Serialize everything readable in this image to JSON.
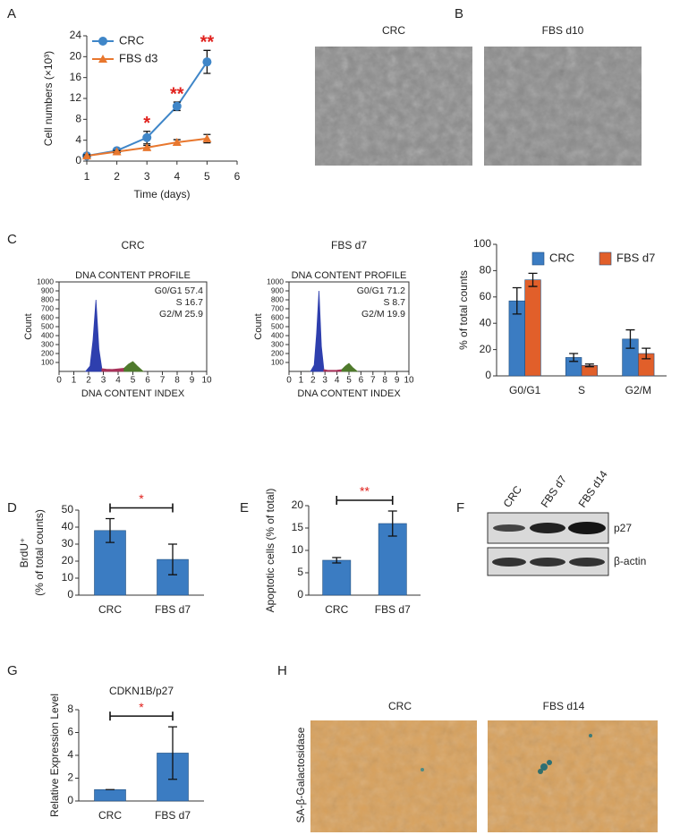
{
  "panels": [
    "A",
    "B",
    "C",
    "D",
    "E",
    "F",
    "G",
    "H"
  ],
  "chart_data": [
    {
      "type": "line",
      "xlabel": "Time (days)",
      "ylabel": "Cell numbers (×10³)",
      "x": [
        1,
        2,
        3,
        4,
        5
      ],
      "xlim": [
        1,
        6
      ],
      "xticks": [
        1,
        2,
        3,
        4,
        5,
        6
      ],
      "ylim": [
        0,
        24
      ],
      "yticks": [
        0,
        4,
        8,
        12,
        16,
        20,
        24
      ],
      "legend": "top-left",
      "series": [
        {
          "name": "CRC",
          "color": "#3f86c8",
          "marker": "circle",
          "values": [
            1,
            2,
            4.5,
            10.5,
            19
          ],
          "errors": [
            0.3,
            0.3,
            1.2,
            0.8,
            2.2
          ]
        },
        {
          "name": "FBS d3",
          "color": "#e8772e",
          "marker": "triangle",
          "values": [
            1,
            1.8,
            2.6,
            3.6,
            4.3
          ],
          "errors": [
            0.2,
            0.2,
            0.4,
            0.5,
            0.8
          ]
        }
      ],
      "annotations": [
        {
          "x": 3,
          "label": "*"
        },
        {
          "x": 4,
          "label": "**"
        },
        {
          "x": 5,
          "label": "**"
        }
      ],
      "annotation_color": "#e0201c"
    },
    {
      "type": "area",
      "heading": "CRC",
      "title": "DNA CONTENT PROFILE",
      "xlabel": "DNA CONTENT INDEX",
      "ylabel": "Count",
      "x": [
        1.8,
        2.1,
        2.3,
        2.5,
        2.7,
        2.9,
        3.2,
        3.6,
        4.0,
        4.4,
        4.7,
        5.0,
        5.3,
        5.7
      ],
      "xlim": [
        0,
        10
      ],
      "xticks": [
        0,
        1,
        2,
        3,
        4,
        5,
        6,
        7,
        8,
        9,
        10
      ],
      "ylim": [
        0,
        1000
      ],
      "yticks": [
        100,
        200,
        300,
        400,
        500,
        600,
        700,
        800,
        900,
        1000
      ],
      "series": [
        {
          "color": "#2e3fae",
          "values": [
            0,
            60,
            350,
            800,
            250,
            30,
            null,
            null,
            null,
            null,
            null,
            null,
            null,
            null
          ]
        },
        {
          "color": "#a8325a",
          "values": [
            null,
            null,
            null,
            null,
            null,
            30,
            25,
            22,
            28,
            35,
            null,
            null,
            null,
            null
          ]
        },
        {
          "color": "#4f7a2c",
          "values": [
            null,
            null,
            null,
            null,
            null,
            null,
            null,
            null,
            null,
            35,
            80,
            110,
            60,
            0
          ]
        }
      ],
      "annotations": [
        "G0/G1 57.4",
        "S 16.7",
        "G2/M 25.9"
      ]
    },
    {
      "type": "area",
      "heading": "FBS d7",
      "title": "DNA CONTENT PROFILE",
      "xlabel": "DNA CONTENT INDEX",
      "ylabel": "Count",
      "x": [
        1.8,
        2.1,
        2.3,
        2.5,
        2.7,
        2.9,
        3.2,
        3.6,
        4.0,
        4.4,
        4.7,
        5.0,
        5.3,
        5.7
      ],
      "xlim": [
        0,
        10
      ],
      "xticks": [
        0,
        1,
        2,
        3,
        4,
        5,
        6,
        7,
        8,
        9,
        10
      ],
      "ylim": [
        0,
        1000
      ],
      "yticks": [
        100,
        200,
        300,
        400,
        500,
        600,
        700,
        800,
        900,
        1000
      ],
      "series": [
        {
          "color": "#2e3fae",
          "values": [
            0,
            70,
            420,
            900,
            280,
            30,
            null,
            null,
            null,
            null,
            null,
            null,
            null,
            null
          ]
        },
        {
          "color": "#a8325a",
          "values": [
            null,
            null,
            null,
            null,
            null,
            20,
            14,
            12,
            14,
            20,
            null,
            null,
            null,
            null
          ]
        },
        {
          "color": "#4f7a2c",
          "values": [
            null,
            null,
            null,
            null,
            null,
            null,
            null,
            null,
            null,
            20,
            60,
            90,
            45,
            0
          ]
        }
      ],
      "annotations": [
        "G0/G1 71.2",
        "S 8.7",
        "G2/M 19.9"
      ]
    },
    {
      "type": "bar",
      "ylabel": "% of total counts",
      "categories": [
        "G0/G1",
        "S",
        "G2/M"
      ],
      "ylim": [
        0,
        100
      ],
      "yticks": [
        0,
        20,
        40,
        60,
        80,
        100
      ],
      "legend": "top",
      "series": [
        {
          "name": "CRC",
          "color": "#3b7cc2",
          "values": [
            57,
            14,
            28
          ],
          "errors": [
            10,
            3,
            7
          ]
        },
        {
          "name": "FBS d7",
          "color": "#e15f2a",
          "values": [
            73,
            8,
            17
          ],
          "errors": [
            5,
            1,
            4
          ]
        }
      ]
    },
    {
      "type": "bar",
      "ylabel": [
        "BrdU⁺",
        "(% of total counts)"
      ],
      "categories": [
        "CRC",
        "FBS d7"
      ],
      "values": [
        38,
        21
      ],
      "errors": [
        7,
        9
      ],
      "color": "#3b7cc2",
      "ylim": [
        0,
        50
      ],
      "yticks": [
        0,
        10,
        20,
        30,
        40,
        50
      ],
      "significance": "*",
      "significance_color": "#e0201c"
    },
    {
      "type": "bar",
      "ylabel": "Apoptotic cells (% of total)",
      "categories": [
        "CRC",
        "FBS d7"
      ],
      "values": [
        7.8,
        16
      ],
      "errors": [
        0.6,
        2.8
      ],
      "color": "#3b7cc2",
      "ylim": [
        0,
        20
      ],
      "yticks": [
        0,
        5,
        10,
        15,
        20
      ],
      "significance": "**",
      "significance_color": "#e0201c"
    },
    {
      "type": "bar",
      "title": "CDKN1B/p27",
      "ylabel": "Relative Expression Level",
      "categories": [
        "CRC",
        "FBS d7"
      ],
      "values": [
        1,
        4.2
      ],
      "errors": [
        0,
        2.3
      ],
      "color": "#3b7cc2",
      "ylim": [
        0,
        8
      ],
      "yticks": [
        0,
        2,
        4,
        6,
        8
      ],
      "significance": "*",
      "significance_color": "#e0201c"
    }
  ],
  "micrographs": [
    {
      "labels": [
        "CRC",
        "FBS d10"
      ],
      "color": "#8c8c8c"
    },
    {
      "labels": [
        "CRC",
        "FBS d14"
      ],
      "stain": "SA-β-Galactosidase",
      "color": "#d8a15c"
    }
  ],
  "blot": {
    "lanes": [
      "CRC",
      "FBS d7",
      "FBS d14"
    ],
    "proteins": [
      "p27",
      "β-actin"
    ]
  }
}
